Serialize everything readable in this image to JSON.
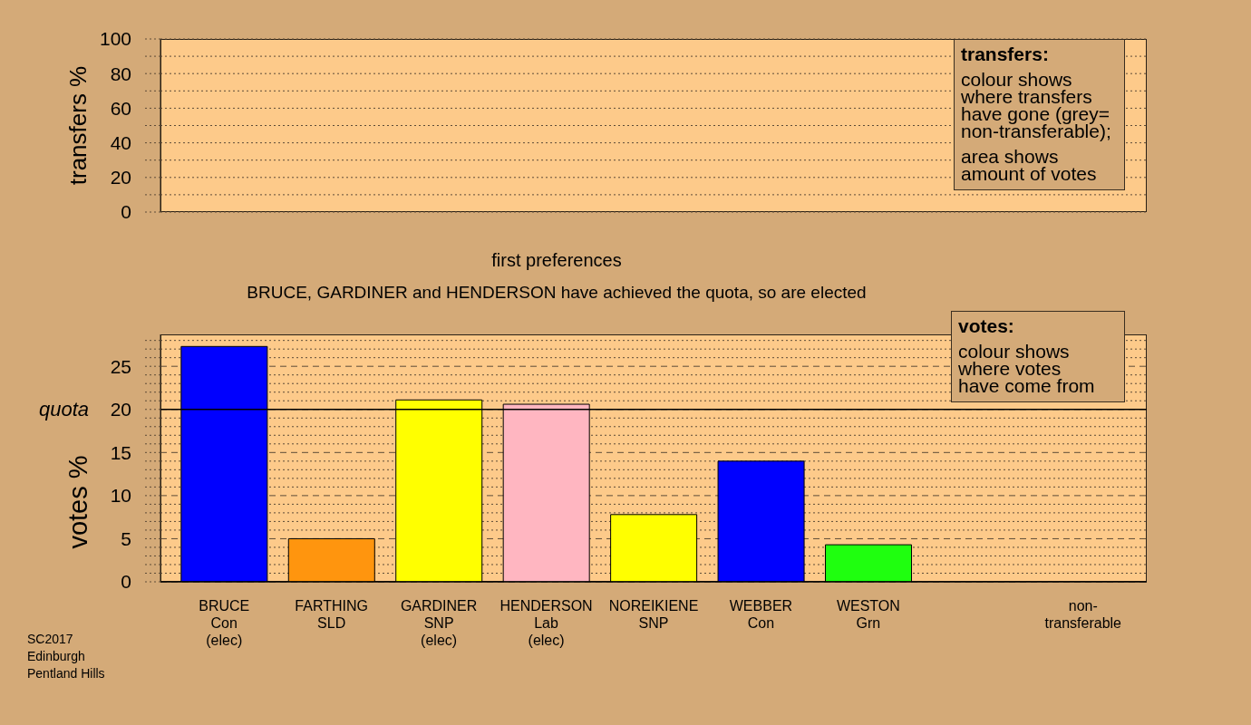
{
  "chart_data": [
    {
      "type": "bar",
      "ylabel": "transfers %",
      "categories": [
        null,
        null,
        null,
        null,
        null,
        null,
        null,
        null,
        null
      ],
      "values": [
        null,
        null,
        null,
        null,
        null,
        null,
        null,
        null,
        null
      ],
      "ylim": [
        0,
        100
      ],
      "yticks": [
        0,
        {
          "value": 10,
          "label": null
        },
        20,
        {
          "value": 30,
          "label": null
        },
        40,
        {
          "value": 50,
          "label": null
        },
        60,
        {
          "value": 70,
          "label": null
        },
        80,
        {
          "value": 90,
          "label": null
        },
        100
      ],
      "grid": "y",
      "tick_labels": "y",
      "annotations": [
        "transfers:",
        "colour shows\nwhere transfers\nhave gone (grey=\nnon-transferable);",
        "area shows\namount of votes"
      ]
    },
    {
      "type": "bar",
      "title": "first preferences",
      "subtitle": "BRUCE, GARDINER and HENDERSON have achieved the quota, so are elected",
      "ylabel": "votes %",
      "categories": [
        "BRUCE\nCon\n(elec)",
        "FARTHING\nSLD",
        "GARDINER\nSNP\n(elec)",
        "HENDERSON\nLab\n(elec)",
        "NOREIKIENE\nSNP",
        "WEBBER\nCon",
        "WESTON\nGrn",
        null,
        "non-\ntransferable"
      ],
      "values": [
        27.3,
        5.0,
        21.1,
        20.6,
        7.8,
        14.0,
        4.3,
        null,
        null
      ],
      "colors": [
        "#0000ff",
        "#ff950e",
        "#ffff00",
        "#ffb6c1",
        "#ffff00",
        "#0000ff",
        "#1fff0f",
        null,
        null
      ],
      "ylim": [
        0,
        28.7
      ],
      "yticks": [
        0,
        {
          "value": 1,
          "label": null
        },
        {
          "value": 2,
          "label": null
        },
        {
          "value": 3,
          "label": null
        },
        {
          "value": 4,
          "label": null
        },
        5,
        {
          "value": 6,
          "label": null
        },
        {
          "value": 7,
          "label": null
        },
        {
          "value": 8,
          "label": null
        },
        {
          "value": 9,
          "label": null
        },
        10,
        {
          "value": 11,
          "label": null
        },
        {
          "value": 12,
          "label": null
        },
        {
          "value": 13,
          "label": null
        },
        {
          "value": 14,
          "label": null
        },
        15,
        {
          "value": 16,
          "label": null
        },
        {
          "value": 17,
          "label": null
        },
        {
          "value": 18,
          "label": null
        },
        {
          "value": 19,
          "label": null
        },
        20,
        {
          "value": 21,
          "label": null
        },
        {
          "value": 22,
          "label": null
        },
        {
          "value": 23,
          "label": null
        },
        {
          "value": 24,
          "label": null
        },
        25,
        {
          "value": 26,
          "label": null
        },
        {
          "value": 27,
          "label": null
        },
        {
          "value": 28,
          "label": null
        }
      ],
      "grid": "y",
      "ref_lines": [
        {
          "axis": "y",
          "value": 20,
          "label": "quota",
          "color": "#000000"
        }
      ],
      "annotations": [
        "votes:",
        "colour shows\nwhere votes\nhave come from",
        "SC2017\nEdinburgh\nPentland Hills"
      ]
    }
  ]
}
